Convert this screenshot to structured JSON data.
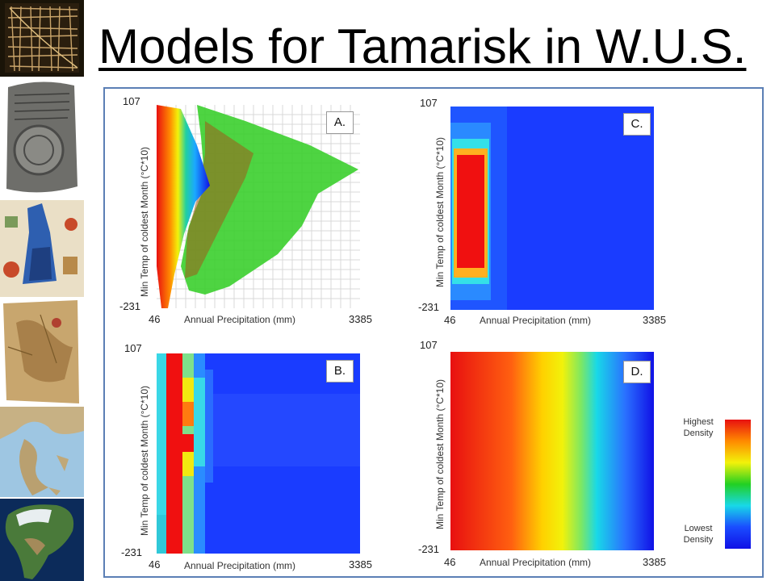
{
  "slide": {
    "title": "Models for Tamarisk in W.U.S."
  },
  "thumbnails": [
    {
      "name": "grid-map-thumbnail"
    },
    {
      "name": "clay-tablet-map-thumbnail"
    },
    {
      "name": "illustrated-map-thumbnail"
    },
    {
      "name": "parchment-map-thumbnail"
    },
    {
      "name": "greece-map-thumbnail"
    },
    {
      "name": "north-america-satellite-thumbnail"
    }
  ],
  "legend": {
    "high_label_1": "Highest",
    "high_label_2": "Density",
    "low_label_1": "Lowest",
    "low_label_2": "Density",
    "colors": [
      "#e81010",
      "#ff8a00",
      "#f2f20a",
      "#22d022",
      "#18d8e8",
      "#1a4cff",
      "#1010e6"
    ]
  },
  "chart_data": [
    {
      "type": "heatmap",
      "panel": "A.",
      "xlabel": "Annual Precipitation (mm)",
      "ylabel": "Min Temp of coldest Month (°C*10)",
      "xlim": [
        46,
        3385
      ],
      "ylim": [
        -231,
        107
      ],
      "x_ticks": [
        "46",
        "3385"
      ],
      "y_ticks": [
        "107",
        "-231"
      ],
      "grid": true
    },
    {
      "type": "heatmap",
      "panel": "B.",
      "xlabel": "Annual Precipitation (mm)",
      "ylabel": "Min Temp of coldest Month (°C*10)",
      "xlim": [
        46,
        3385
      ],
      "ylim": [
        -231,
        107
      ],
      "x_ticks": [
        "46",
        "3385"
      ],
      "y_ticks": [
        "107",
        "-231"
      ],
      "grid": false
    },
    {
      "type": "heatmap",
      "panel": "C.",
      "xlabel": "Annual Precipitation (mm)",
      "ylabel": "Min Temp of coldest Month (°C*10)",
      "xlim": [
        46,
        3385
      ],
      "ylim": [
        -231,
        107
      ],
      "x_ticks": [
        "46",
        "3385"
      ],
      "y_ticks": [
        "107",
        "-231"
      ],
      "grid": false
    },
    {
      "type": "heatmap",
      "panel": "D.",
      "xlabel": "Annual Precipitation (mm)",
      "ylabel": "Min Temp of coldest Month (°C*10)",
      "xlim": [
        46,
        3385
      ],
      "ylim": [
        -231,
        107
      ],
      "x_ticks": [
        "46",
        "3385"
      ],
      "y_ticks": [
        "107",
        "-231"
      ],
      "grid": false
    }
  ]
}
